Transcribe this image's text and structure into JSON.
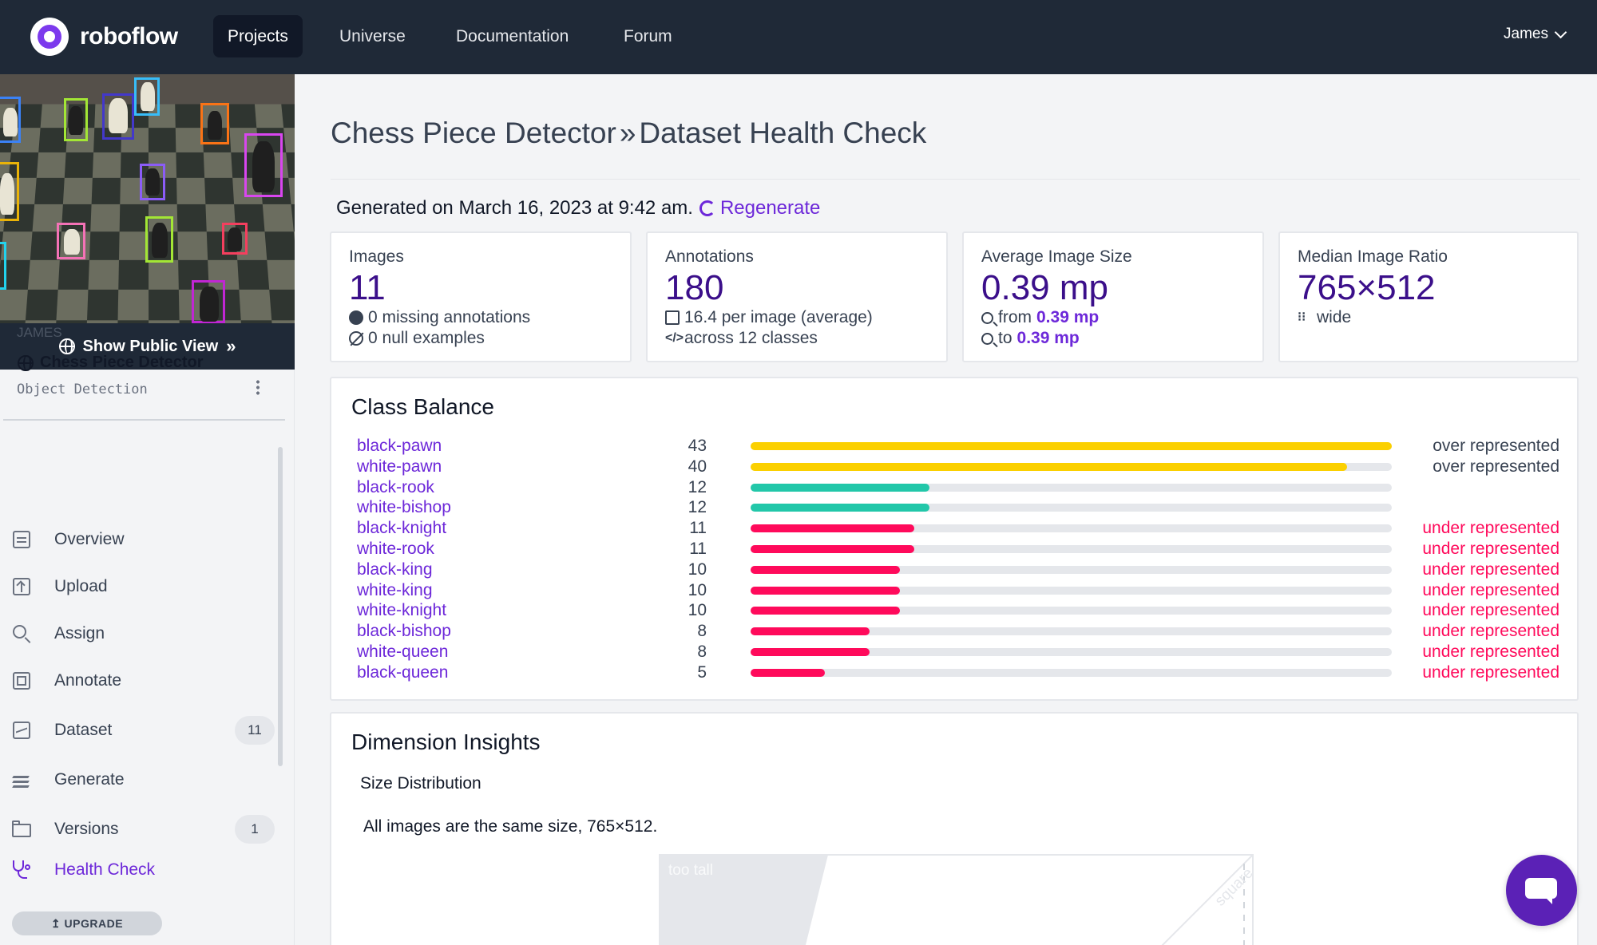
{
  "nav": {
    "brand": "roboflow",
    "items": [
      {
        "label": "Projects",
        "active": true
      },
      {
        "label": "Universe",
        "active": false
      },
      {
        "label": "Documentation",
        "active": false
      },
      {
        "label": "Forum",
        "active": false
      }
    ],
    "user": "James"
  },
  "sidebar": {
    "public_view_label": "Show Public View",
    "workspace_owner": "JAMES",
    "project_name": "Chess Piece Detector",
    "project_type": "Object Detection",
    "items": [
      {
        "label": "Overview",
        "icon": "overview-icon",
        "count": null
      },
      {
        "label": "Upload",
        "icon": "upload-icon",
        "count": null
      },
      {
        "label": "Assign",
        "icon": "search-icon",
        "count": null
      },
      {
        "label": "Annotate",
        "icon": "annotate-icon",
        "count": null
      },
      {
        "label": "Dataset",
        "icon": "dataset-icon",
        "count": "11"
      },
      {
        "label": "Generate",
        "icon": "generate-icon",
        "count": null
      },
      {
        "label": "Versions",
        "icon": "folder-icon",
        "count": "1"
      },
      {
        "label": "Health Check",
        "icon": "stethoscope-icon",
        "count": null,
        "active": true
      }
    ],
    "upgrade_label": "UPGRADE"
  },
  "header": {
    "project": "Chess Piece Detector",
    "page": "Dataset Health Check",
    "generated": "Generated on March 16, 2023 at 9:42 am.",
    "regenerate": "Regenerate"
  },
  "stats": {
    "images": {
      "label": "Images",
      "value": "11",
      "line1": "0 missing annotations",
      "line2": "0 null examples"
    },
    "annotations": {
      "label": "Annotations",
      "value": "180",
      "line1": "16.4 per image (average)",
      "line2": "across 12 classes"
    },
    "avg_size": {
      "label": "Average Image Size",
      "value": "0.39 mp",
      "from_prefix": "from",
      "from_value": "0.39 mp",
      "to_prefix": "to",
      "to_value": "0.39 mp"
    },
    "median_ratio": {
      "label": "Median Image Ratio",
      "value": "765×512",
      "line1": "wide"
    }
  },
  "class_balance": {
    "title": "Class Balance",
    "max": 43,
    "colors": {
      "over": "#fbd000",
      "normal": "#22c7a9",
      "under": "#ff0a5b",
      "over_text": "#374151",
      "under_text": "#ff0a5b"
    },
    "rows": [
      {
        "name": "black-pawn",
        "count": 43,
        "status": "over represented",
        "kind": "over"
      },
      {
        "name": "white-pawn",
        "count": 40,
        "status": "over represented",
        "kind": "over"
      },
      {
        "name": "black-rook",
        "count": 12,
        "status": "",
        "kind": "normal"
      },
      {
        "name": "white-bishop",
        "count": 12,
        "status": "",
        "kind": "normal"
      },
      {
        "name": "black-knight",
        "count": 11,
        "status": "under represented",
        "kind": "under"
      },
      {
        "name": "white-rook",
        "count": 11,
        "status": "under represented",
        "kind": "under"
      },
      {
        "name": "black-king",
        "count": 10,
        "status": "under represented",
        "kind": "under"
      },
      {
        "name": "white-king",
        "count": 10,
        "status": "under represented",
        "kind": "under"
      },
      {
        "name": "white-knight",
        "count": 10,
        "status": "under represented",
        "kind": "under"
      },
      {
        "name": "black-bishop",
        "count": 8,
        "status": "under represented",
        "kind": "under"
      },
      {
        "name": "white-queen",
        "count": 8,
        "status": "under represented",
        "kind": "under"
      },
      {
        "name": "black-queen",
        "count": 5,
        "status": "under represented",
        "kind": "under"
      }
    ]
  },
  "dimension": {
    "title": "Dimension Insights",
    "subtitle": "Size Distribution",
    "note": "All images are the same size, 765×512.",
    "chart_label_tall": "too tall",
    "chart_label_square": "square"
  }
}
